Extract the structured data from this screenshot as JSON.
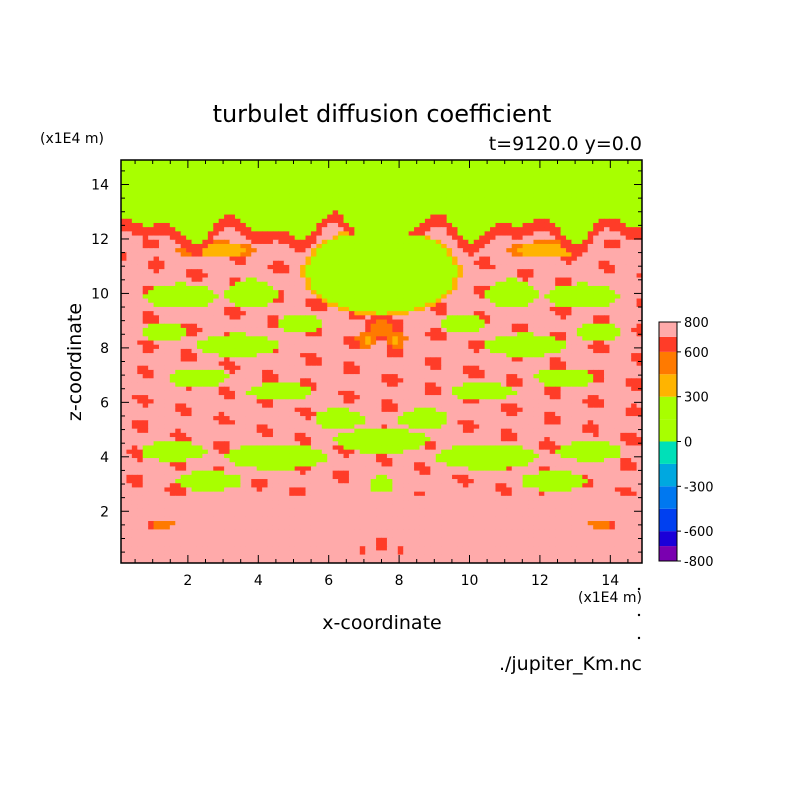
{
  "chart_data": {
    "type": "heatmap",
    "title": "turbulet diffusion coefficient",
    "subtitle": "t=9120.0 y=0.0",
    "xlabel": "x-coordinate",
    "ylabel": "z-coordinate",
    "x_unit": "(x1E4 m)",
    "y_unit": "(x1E4 m)",
    "source": "./jupiter_Km.nc",
    "xlim": [
      0.1,
      14.9
    ],
    "ylim": [
      0.1,
      14.9
    ],
    "x_ticks": [
      "2",
      "4",
      "6",
      "8",
      "10",
      "12",
      "14"
    ],
    "x_tick_values": [
      2,
      4,
      6,
      8,
      10,
      12,
      14
    ],
    "y_ticks": [
      "2",
      "4",
      "6",
      "8",
      "10",
      "12",
      "14"
    ],
    "y_tick_values": [
      2,
      4,
      6,
      8,
      10,
      12,
      14
    ],
    "colorbar": {
      "min": -800,
      "max": 800,
      "labels": [
        "800",
        "600",
        "300",
        "0",
        "-300",
        "-600",
        "-800"
      ],
      "label_values": [
        800,
        600,
        300,
        0,
        -300,
        -600,
        -800
      ],
      "levels": [
        {
          "from": -800,
          "to": -700,
          "color": "#7a00b0"
        },
        {
          "from": -700,
          "to": -600,
          "color": "#1a00d8"
        },
        {
          "from": -600,
          "to": -450,
          "color": "#0040f0"
        },
        {
          "from": -450,
          "to": -300,
          "color": "#0078f0"
        },
        {
          "from": -300,
          "to": -150,
          "color": "#00a8e0"
        },
        {
          "from": -150,
          "to": 0,
          "color": "#00e0b8"
        },
        {
          "from": 0,
          "to": 150,
          "color": "#a8ff00"
        },
        {
          "from": 150,
          "to": 300,
          "color": "#a8ff00"
        },
        {
          "from": 300,
          "to": 450,
          "color": "#ffb400"
        },
        {
          "from": 450,
          "to": 600,
          "color": "#ff7a00"
        },
        {
          "from": 600,
          "to": 700,
          "color": "#ff3c28"
        },
        {
          "from": 700,
          "to": 800,
          "color": "#ffaaaa"
        }
      ]
    },
    "field": {
      "top_layer_value": 100,
      "top_layer_base_z": 12.4,
      "lower_region_value": 750,
      "structures": [
        {
          "x": 7.5,
          "z": 10.8,
          "sx": 2.2,
          "sz": 1.6,
          "value": 120
        },
        {
          "x": 7.5,
          "z": 8.7,
          "sx": 0.45,
          "sz": 0.5,
          "value": 500
        },
        {
          "x": 7.1,
          "z": 8.3,
          "sx": 0.3,
          "sz": 0.3,
          "value": 400
        },
        {
          "x": 7.9,
          "z": 8.3,
          "sx": 0.3,
          "sz": 0.3,
          "value": 400
        },
        {
          "x": 1.0,
          "z": 11.8,
          "sx": 0.6,
          "sz": 0.5,
          "value": 650
        },
        {
          "x": 14.0,
          "z": 11.8,
          "sx": 0.6,
          "sz": 0.5,
          "value": 650
        },
        {
          "x": 2.8,
          "z": 11.6,
          "sx": 1.1,
          "sz": 0.3,
          "value": 300
        },
        {
          "x": 12.2,
          "z": 11.6,
          "sx": 1.1,
          "sz": 0.3,
          "value": 300
        },
        {
          "x": 1.8,
          "z": 9.9,
          "sx": 1.0,
          "sz": 0.45,
          "value": 100
        },
        {
          "x": 13.2,
          "z": 9.9,
          "sx": 1.0,
          "sz": 0.45,
          "value": 100
        },
        {
          "x": 3.8,
          "z": 10.0,
          "sx": 0.7,
          "sz": 0.5,
          "value": 100
        },
        {
          "x": 11.2,
          "z": 10.0,
          "sx": 0.7,
          "sz": 0.5,
          "value": 100
        },
        {
          "x": 1.3,
          "z": 8.6,
          "sx": 0.6,
          "sz": 0.35,
          "value": 100
        },
        {
          "x": 13.7,
          "z": 8.6,
          "sx": 0.6,
          "sz": 0.35,
          "value": 100
        },
        {
          "x": 3.4,
          "z": 8.1,
          "sx": 1.1,
          "sz": 0.4,
          "value": 100
        },
        {
          "x": 11.6,
          "z": 8.1,
          "sx": 1.1,
          "sz": 0.4,
          "value": 100
        },
        {
          "x": 5.2,
          "z": 8.9,
          "sx": 0.6,
          "sz": 0.35,
          "value": 100
        },
        {
          "x": 9.8,
          "z": 8.9,
          "sx": 0.6,
          "sz": 0.35,
          "value": 100
        },
        {
          "x": 2.3,
          "z": 6.9,
          "sx": 0.8,
          "sz": 0.35,
          "value": 100
        },
        {
          "x": 12.7,
          "z": 6.9,
          "sx": 0.8,
          "sz": 0.35,
          "value": 100
        },
        {
          "x": 4.6,
          "z": 6.4,
          "sx": 0.9,
          "sz": 0.3,
          "value": 100
        },
        {
          "x": 10.4,
          "z": 6.4,
          "sx": 0.9,
          "sz": 0.3,
          "value": 100
        },
        {
          "x": 6.3,
          "z": 5.4,
          "sx": 0.7,
          "sz": 0.35,
          "value": 100
        },
        {
          "x": 8.7,
          "z": 5.4,
          "sx": 0.7,
          "sz": 0.35,
          "value": 100
        },
        {
          "x": 7.5,
          "z": 4.6,
          "sx": 1.3,
          "sz": 0.45,
          "value": 100
        },
        {
          "x": 4.5,
          "z": 4.0,
          "sx": 1.4,
          "sz": 0.45,
          "value": 100
        },
        {
          "x": 10.5,
          "z": 4.0,
          "sx": 1.4,
          "sz": 0.45,
          "value": 100
        },
        {
          "x": 1.6,
          "z": 4.2,
          "sx": 0.9,
          "sz": 0.35,
          "value": 100
        },
        {
          "x": 13.4,
          "z": 4.2,
          "sx": 0.9,
          "sz": 0.35,
          "value": 100
        },
        {
          "x": 2.6,
          "z": 3.1,
          "sx": 0.9,
          "sz": 0.35,
          "value": 100
        },
        {
          "x": 12.4,
          "z": 3.1,
          "sx": 0.9,
          "sz": 0.35,
          "value": 100
        },
        {
          "x": 7.5,
          "z": 3.0,
          "sx": 0.3,
          "sz": 0.35,
          "value": 100
        },
        {
          "x": 1.2,
          "z": 1.5,
          "sx": 1.0,
          "sz": 0.3,
          "value": 650
        },
        {
          "x": 13.8,
          "z": 1.5,
          "sx": 1.0,
          "sz": 0.3,
          "value": 650
        },
        {
          "x": 1.3,
          "z": 1.5,
          "sx": 0.3,
          "sz": 0.15,
          "value": 400
        },
        {
          "x": 13.7,
          "z": 1.5,
          "sx": 0.3,
          "sz": 0.15,
          "value": 400
        },
        {
          "x": 7.5,
          "z": 0.8,
          "sx": 0.3,
          "sz": 0.6,
          "value": 650
        },
        {
          "x": 7.0,
          "z": 0.5,
          "sx": 0.25,
          "sz": 0.4,
          "value": 650
        },
        {
          "x": 8.0,
          "z": 0.5,
          "sx": 0.25,
          "sz": 0.4,
          "value": 650
        }
      ]
    }
  }
}
